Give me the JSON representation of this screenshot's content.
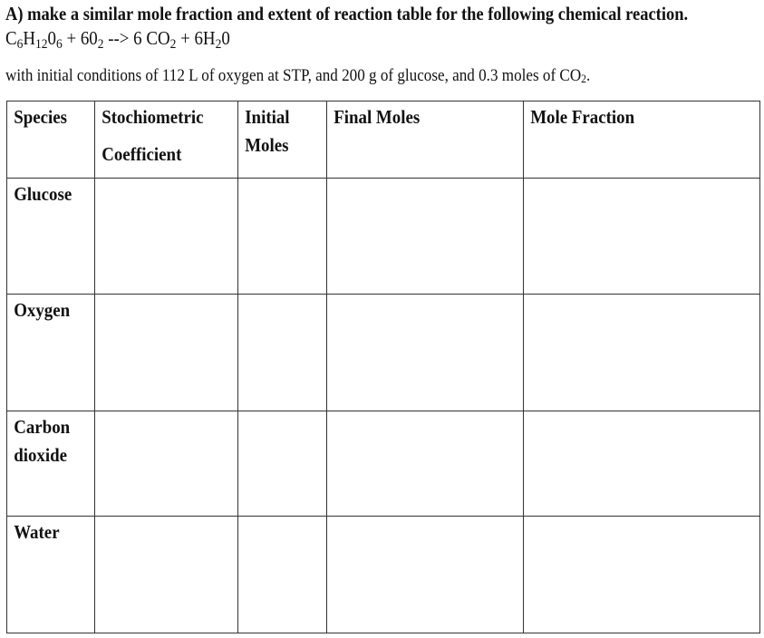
{
  "question": {
    "title": "A) make a similar mole fraction and extent of reaction table for the following chemical reaction.",
    "equation": {
      "glucose": [
        "C",
        "6",
        "H",
        "12",
        "0",
        "6"
      ],
      "plus1": " + 6",
      "o2": [
        "0",
        "2"
      ],
      "arrow": " --> 6 CO",
      "co2_sub": "2",
      "plus2": " + 6H",
      "h2o_sub": "2",
      "h2o_end": "0"
    },
    "conditions": "with initial conditions of 112 L of oxygen at STP, and 200 g of glucose, and 0.3 moles of CO",
    "conditions_sub": "2",
    "conditions_end": "."
  },
  "table": {
    "headers": [
      [
        "Species"
      ],
      [
        "Stochiometric",
        "Coefficient"
      ],
      [
        "Initial",
        "Moles"
      ],
      [
        "Final Moles"
      ],
      [
        "Mole Fraction"
      ]
    ],
    "rows": [
      [
        "Glucose"
      ],
      [
        "Oxygen"
      ],
      [
        "Carbon",
        "dioxide"
      ],
      [
        "Water"
      ]
    ]
  }
}
